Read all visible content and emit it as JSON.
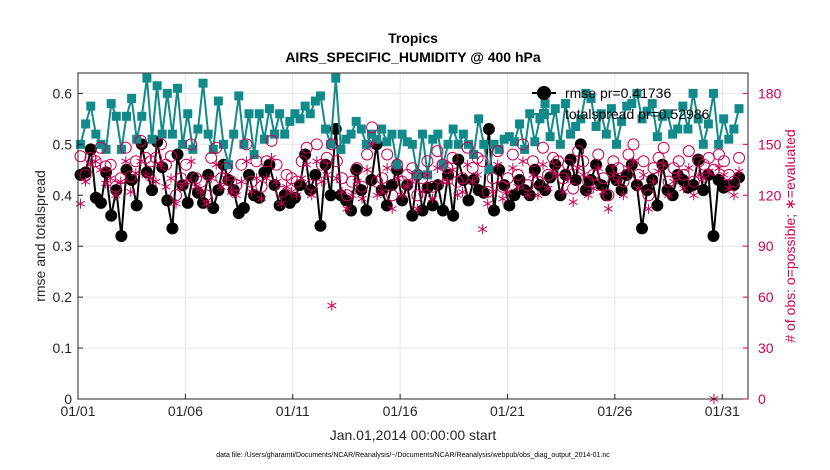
{
  "chart_data": {
    "type": "line",
    "title": "Tropics",
    "subtitle": "AIRS_SPECIFIC_HUMIDITY @ 400 hPa",
    "xlabel": "Jan.01,2014 00:00:00 start",
    "ylabel": "rmse and totalspread",
    "ylabel_right": "# of obs: o=possible; ∗=evaluated",
    "footer": "data file: /Users/gharamti/Documents/NCAR/Reanalysis/~/Documents/NCAR/Reanalysis/webpub/obs_diag_output_2014-01.nc",
    "xlim": [
      0,
      31.2
    ],
    "ylim": [
      0,
      0.64
    ],
    "ylim_right": [
      0,
      192
    ],
    "x_ticks": [
      {
        "label": "01/01",
        "value": 0
      },
      {
        "label": "01/06",
        "value": 5
      },
      {
        "label": "01/11",
        "value": 10
      },
      {
        "label": "01/16",
        "value": 15
      },
      {
        "label": "01/21",
        "value": 20
      },
      {
        "label": "01/26",
        "value": 25
      },
      {
        "label": "01/31",
        "value": 30
      }
    ],
    "y_ticks": [
      "0",
      "0.1",
      "0.2",
      "0.3",
      "0.4",
      "0.5",
      "0.6"
    ],
    "y_ticks_right": [
      "0",
      "30",
      "60",
      "90",
      "120",
      "150",
      "180"
    ],
    "grid": true,
    "legend_position": "top-right",
    "series": [
      {
        "name": "rmse pr=0.41736",
        "color": "#000000",
        "marker": "circle",
        "axis": "left",
        "values": [
          0.44,
          0.445,
          0.49,
          0.395,
          0.385,
          0.445,
          0.36,
          0.41,
          0.32,
          0.45,
          0.43,
          0.38,
          0.5,
          0.445,
          0.41,
          0.505,
          0.455,
          0.39,
          0.335,
          0.48,
          0.42,
          0.385,
          0.435,
          0.405,
          0.385,
          0.44,
          0.375,
          0.41,
          0.46,
          0.43,
          0.41,
          0.365,
          0.375,
          0.44,
          0.4,
          0.395,
          0.445,
          0.46,
          0.42,
          0.38,
          0.4,
          0.385,
          0.395,
          0.42,
          0.48,
          0.41,
          0.44,
          0.34,
          0.46,
          0.4,
          0.53,
          0.4,
          0.39,
          0.37,
          0.45,
          0.41,
          0.37,
          0.43,
          0.5,
          0.41,
          0.38,
          0.42,
          0.45,
          0.39,
          0.42,
          0.36,
          0.44,
          0.37,
          0.415,
          0.38,
          0.42,
          0.37,
          0.44,
          0.36,
          0.47,
          0.43,
          0.39,
          0.43,
          0.41,
          0.405,
          0.53,
          0.37,
          0.45,
          0.42,
          0.38,
          0.4,
          0.43,
          0.41,
          0.4,
          0.45,
          0.42,
          0.41,
          0.435,
          0.46,
          0.4,
          0.44,
          0.47,
          0.43,
          0.5,
          0.41,
          0.43,
          0.46,
          0.42,
          0.4,
          0.45,
          0.43,
          0.41,
          0.44,
          0.46,
          0.42,
          0.335,
          0.41,
          0.43,
          0.38,
          0.46,
          0.41,
          0.4,
          0.44,
          0.43,
          0.415,
          0.42,
          0.47,
          0.41,
          0.44,
          0.32,
          0.43,
          0.415,
          0.42,
          0.42,
          0.435
        ]
      },
      {
        "name": "totalspread pr=0.52986",
        "color": "#138a8a",
        "marker": "square",
        "axis": "left",
        "values": [
          0.5,
          0.54,
          0.575,
          0.52,
          0.5,
          0.49,
          0.58,
          0.555,
          0.49,
          0.555,
          0.59,
          0.51,
          0.555,
          0.63,
          0.51,
          0.615,
          0.52,
          0.6,
          0.52,
          0.61,
          0.5,
          0.56,
          0.49,
          0.53,
          0.62,
          0.52,
          0.49,
          0.585,
          0.5,
          0.46,
          0.52,
          0.595,
          0.5,
          0.56,
          0.48,
          0.56,
          0.51,
          0.57,
          0.52,
          0.56,
          0.52,
          0.545,
          0.56,
          0.55,
          0.575,
          0.56,
          0.585,
          0.595,
          0.53,
          0.5,
          0.63,
          0.49,
          0.51,
          0.52,
          0.545,
          0.53,
          0.5,
          0.52,
          0.51,
          0.53,
          0.505,
          0.52,
          0.46,
          0.52,
          0.505,
          0.5,
          0.44,
          0.52,
          0.44,
          0.51,
          0.52,
          0.46,
          0.5,
          0.53,
          0.5,
          0.52,
          0.5,
          0.48,
          0.55,
          0.5,
          0.45,
          0.5,
          0.49,
          0.51,
          0.515,
          0.505,
          0.54,
          0.49,
          0.56,
          0.505,
          0.55,
          0.58,
          0.515,
          0.57,
          0.5,
          0.58,
          0.52,
          0.535,
          0.55,
          0.6,
          0.59,
          0.535,
          0.56,
          0.52,
          0.57,
          0.5,
          0.545,
          0.575,
          0.58,
          0.6,
          0.55,
          0.565,
          0.58,
          0.515,
          0.555,
          0.56,
          0.52,
          0.53,
          0.575,
          0.53,
          0.6,
          0.55,
          0.5,
          0.54,
          0.6,
          0.5,
          0.55,
          0.51,
          0.53,
          0.57
        ]
      },
      {
        "name": "possible",
        "color": "#cc0055",
        "marker": "open-circle",
        "axis": "right",
        "values": [
          143,
          132,
          142,
          140,
          148,
          137,
          138,
          125,
          130,
          148,
          131,
          140,
          152,
          142,
          140,
          142,
          150,
          138,
          143,
          120,
          130,
          138,
          150,
          130,
          128,
          120,
          142,
          148,
          130,
          136,
          128,
          126,
          138,
          150,
          128,
          140,
          125,
          140,
          152,
          138,
          122,
          132,
          130,
          128,
          140,
          148,
          126,
          150,
          138,
          142,
          150,
          140,
          130,
          120,
          128,
          136,
          125,
          144,
          160,
          128,
          130,
          144,
          120,
          138,
          128,
          132,
          136,
          120,
          130,
          140,
          125,
          146,
          138,
          136,
          142,
          128,
          130,
          148,
          136,
          142,
          140,
          122,
          130,
          146,
          125,
          130,
          144,
          132,
          150,
          126,
          140,
          128,
          148,
          132,
          142,
          140,
          130,
          138,
          124,
          146,
          140,
          128,
          132,
          144,
          130,
          120,
          140,
          136,
          128,
          144,
          150,
          132,
          140,
          120,
          136,
          142,
          148,
          128,
          136,
          140,
          132,
          146,
          128,
          140,
          138,
          142,
          135,
          144,
          140,
          132,
          128,
          142
        ]
      },
      {
        "name": "evaluated",
        "color": "#cc0055",
        "marker": "asterisk",
        "axis": "right",
        "values": [
          115,
          128,
          138,
          140,
          135,
          127,
          130,
          120,
          128,
          140,
          122,
          133,
          140,
          132,
          130,
          128,
          138,
          125,
          130,
          115,
          125,
          128,
          140,
          125,
          122,
          115,
          130,
          138,
          125,
          130,
          122,
          120,
          128,
          140,
          122,
          130,
          118,
          130,
          142,
          128,
          115,
          125,
          122,
          120,
          130,
          138,
          120,
          140,
          128,
          132,
          55,
          130,
          122,
          112,
          120,
          128,
          118,
          135,
          150,
          120,
          122,
          136,
          112,
          130,
          120,
          125,
          128,
          112,
          122,
          132,
          118,
          136,
          128,
          128,
          135,
          120,
          122,
          138,
          128,
          132,
          100,
          115,
          122,
          138,
          118,
          122,
          136,
          125,
          140,
          120,
          132,
          120,
          138,
          124,
          134,
          132,
          122,
          130,
          116,
          136,
          132,
          120,
          124,
          136,
          122,
          112,
          132,
          128,
          120,
          136,
          140,
          124,
          132,
          112,
          128,
          134,
          138,
          120,
          128,
          132,
          124,
          136,
          120,
          132,
          130,
          134,
          0,
          136,
          132,
          124,
          120,
          134
        ]
      }
    ]
  }
}
